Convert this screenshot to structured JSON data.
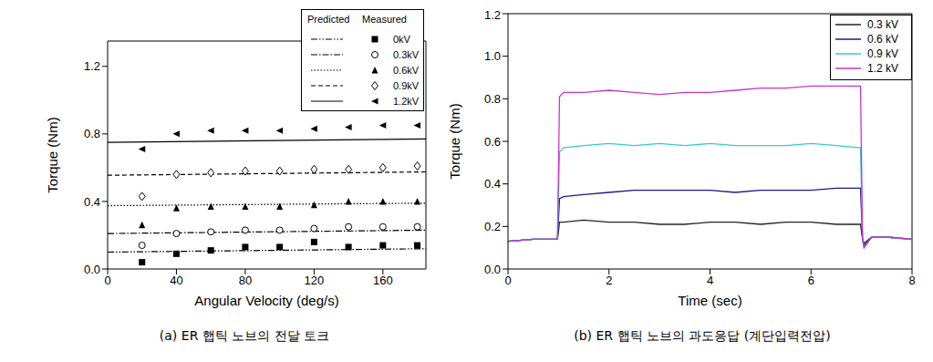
{
  "chart_data": [
    {
      "type": "scatter",
      "caption": "(a) ER 햅틱 노브의 전달 토크",
      "x_label": "Angular Velocity (deg/s)",
      "y_label": "Torque (Nm)",
      "xlim": [
        0,
        185
      ],
      "xticks": [
        0,
        40,
        80,
        120,
        160
      ],
      "ylim": [
        0,
        1.35
      ],
      "yticks": [
        {
          "value": 0,
          "label": "0.0"
        },
        {
          "value": 0.4,
          "label": "0.4"
        },
        {
          "value": 0.8,
          "label": "0.8"
        },
        {
          "value": 1.2,
          "label": "1.2"
        }
      ],
      "legend": "upper right",
      "legend_headers": [
        "Predicted",
        "Measured"
      ],
      "series": [
        {
          "name": "0kV",
          "color": "#000000",
          "line_style": "dash-dot-dot",
          "marker": "square",
          "predicted": {
            "x": [
              0,
              185
            ],
            "values": [
              0.1,
              0.12
            ]
          },
          "measured": {
            "x": [
              20,
              40,
              60,
              80,
              100,
              120,
              140,
              160,
              180
            ],
            "values": [
              0.04,
              0.09,
              0.11,
              0.13,
              0.13,
              0.16,
              0.13,
              0.14,
              0.14
            ]
          }
        },
        {
          "name": "0.3kV",
          "color": "#000000",
          "line_style": "dash-dot",
          "marker": "circle-open",
          "predicted": {
            "x": [
              0,
              185
            ],
            "values": [
              0.21,
              0.23
            ]
          },
          "measured": {
            "x": [
              20,
              40,
              60,
              80,
              100,
              120,
              140,
              160,
              180
            ],
            "values": [
              0.14,
              0.21,
              0.22,
              0.23,
              0.23,
              0.24,
              0.25,
              0.25,
              0.25
            ]
          }
        },
        {
          "name": "0.6kV",
          "color": "#000000",
          "line_style": "dotted",
          "marker": "triangle",
          "predicted": {
            "x": [
              0,
              185
            ],
            "values": [
              0.375,
              0.39
            ]
          },
          "measured": {
            "x": [
              20,
              40,
              60,
              80,
              100,
              120,
              140,
              160,
              180
            ],
            "values": [
              0.26,
              0.36,
              0.37,
              0.37,
              0.37,
              0.38,
              0.4,
              0.4,
              0.4
            ]
          }
        },
        {
          "name": "0.9kV",
          "color": "#000000",
          "line_style": "dashed",
          "marker": "diamond-open",
          "predicted": {
            "x": [
              0,
              185
            ],
            "values": [
              0.555,
              0.575
            ]
          },
          "measured": {
            "x": [
              20,
              40,
              60,
              80,
              100,
              120,
              140,
              160,
              180
            ],
            "values": [
              0.43,
              0.56,
              0.57,
              0.58,
              0.58,
              0.59,
              0.59,
              0.6,
              0.61
            ]
          }
        },
        {
          "name": "1.2kV",
          "color": "#000000",
          "line_style": "solid",
          "marker": "triangle-left",
          "predicted": {
            "x": [
              0,
              185
            ],
            "values": [
              0.75,
              0.77
            ]
          },
          "measured": {
            "x": [
              20,
              40,
              60,
              80,
              100,
              120,
              140,
              160,
              180
            ],
            "values": [
              0.71,
              0.8,
              0.82,
              0.82,
              0.82,
              0.83,
              0.84,
              0.85,
              0.85
            ]
          }
        }
      ]
    },
    {
      "type": "line",
      "caption": "(b) ER 햅틱 노브의 과도응답 (계단입력전압)",
      "x_label": "Time (sec)",
      "y_label": "Torque (Nm)",
      "xlim": [
        0,
        8
      ],
      "xticks": [
        0,
        2,
        4,
        6,
        8
      ],
      "ylim": [
        0,
        1.2
      ],
      "yticks": [
        {
          "value": 0,
          "label": "0.0"
        },
        {
          "value": 0.2,
          "label": "0.2"
        },
        {
          "value": 0.4,
          "label": "0.4"
        },
        {
          "value": 0.6,
          "label": "0.6"
        },
        {
          "value": 0.8,
          "label": "0.8"
        },
        {
          "value": 1.0,
          "label": "1.0"
        },
        {
          "value": 1.2,
          "label": "1.2"
        }
      ],
      "legend": "upper right",
      "x": [
        0,
        0.5,
        0.98,
        1.02,
        1.1,
        1.5,
        2,
        2.5,
        3,
        3.5,
        4,
        4.5,
        5,
        5.5,
        6,
        6.5,
        6.98,
        7.02,
        7.05,
        7.2,
        7.5,
        8
      ],
      "series": [
        {
          "name": "0.3 kV",
          "color": "#222222",
          "values": [
            0.13,
            0.14,
            0.14,
            0.22,
            0.22,
            0.23,
            0.22,
            0.22,
            0.21,
            0.21,
            0.22,
            0.22,
            0.21,
            0.22,
            0.22,
            0.21,
            0.21,
            0.14,
            0.12,
            0.15,
            0.15,
            0.14
          ]
        },
        {
          "name": "0.6 kV",
          "color": "#1a1a8c",
          "values": [
            0.13,
            0.14,
            0.14,
            0.33,
            0.34,
            0.35,
            0.36,
            0.37,
            0.37,
            0.37,
            0.37,
            0.36,
            0.37,
            0.37,
            0.37,
            0.38,
            0.38,
            0.14,
            0.11,
            0.15,
            0.15,
            0.14
          ]
        },
        {
          "name": "0.9 kV",
          "color": "#33cccc",
          "values": [
            0.13,
            0.14,
            0.14,
            0.55,
            0.57,
            0.58,
            0.59,
            0.58,
            0.59,
            0.58,
            0.59,
            0.58,
            0.58,
            0.58,
            0.59,
            0.58,
            0.57,
            0.14,
            0.1,
            0.15,
            0.15,
            0.14
          ]
        },
        {
          "name": "1.2 kV",
          "color": "#cc33cc",
          "values": [
            0.13,
            0.14,
            0.14,
            0.81,
            0.83,
            0.83,
            0.84,
            0.83,
            0.82,
            0.83,
            0.83,
            0.84,
            0.85,
            0.85,
            0.86,
            0.86,
            0.86,
            0.14,
            0.1,
            0.15,
            0.15,
            0.14
          ]
        }
      ]
    }
  ]
}
